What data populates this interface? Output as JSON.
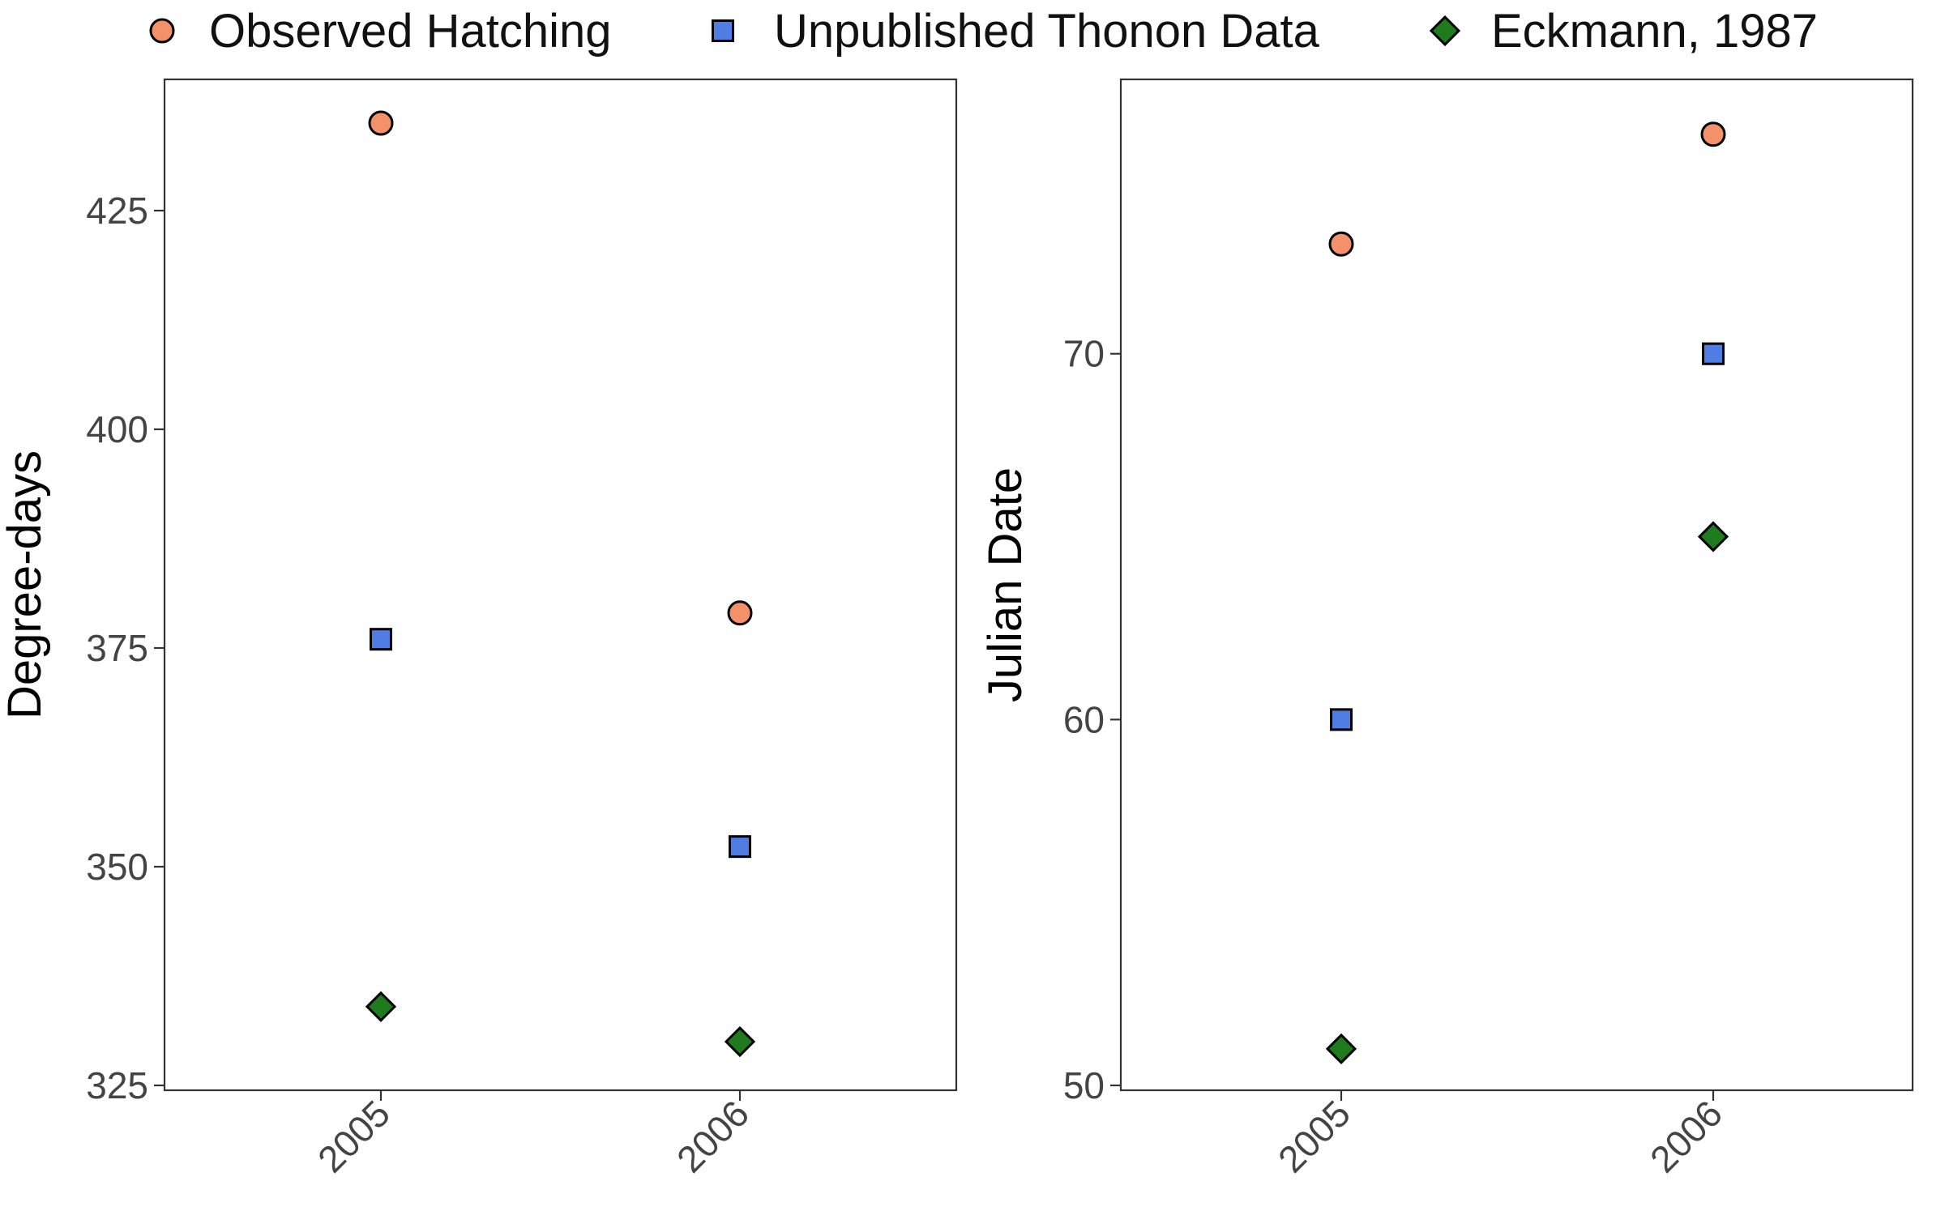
{
  "legend": {
    "placement": "top",
    "items": [
      {
        "label": "Observed Hatching",
        "shape": "circle",
        "color": "#F4916B"
      },
      {
        "label": "Unpublished Thonon Data",
        "shape": "square",
        "color": "#4F7DE3"
      },
      {
        "label": "Eckmann, 1987",
        "shape": "diamond",
        "color": "#1E7B1E"
      }
    ]
  },
  "chart_data": [
    {
      "type": "scatter",
      "title": "",
      "xlabel": "",
      "ylabel": "Degree-days",
      "categories": [
        "2005",
        "2006"
      ],
      "ylim": [
        325,
        440
      ],
      "yticks": [
        325,
        350,
        375,
        400,
        425
      ],
      "grid": false,
      "series": [
        {
          "name": "Observed Hatching",
          "values": [
            435,
            379
          ]
        },
        {
          "name": "Unpublished Thonon Data",
          "values": [
            376,
            352.3
          ]
        },
        {
          "name": "Eckmann, 1987",
          "values": [
            334,
            330
          ]
        }
      ]
    },
    {
      "type": "scatter",
      "title": "",
      "xlabel": "",
      "ylabel": "Julian Date",
      "categories": [
        "2005",
        "2006"
      ],
      "ylim": [
        50,
        77.5
      ],
      "yticks": [
        50,
        60,
        70
      ],
      "grid": false,
      "series": [
        {
          "name": "Observed Hatching",
          "values": [
            73,
            76
          ]
        },
        {
          "name": "Unpublished Thonon Data",
          "values": [
            60,
            70
          ]
        },
        {
          "name": "Eckmann, 1987",
          "values": [
            51,
            65
          ]
        }
      ]
    }
  ]
}
